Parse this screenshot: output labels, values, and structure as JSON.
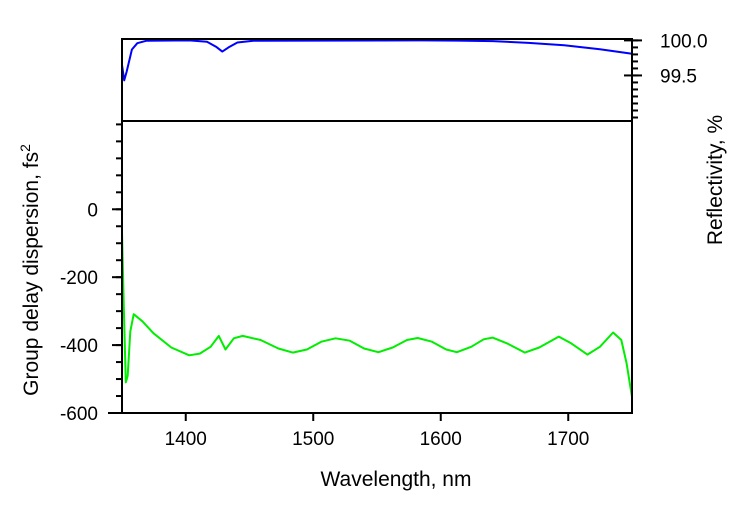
{
  "chart_data": [
    {
      "type": "line",
      "panel": "top",
      "ylabel": "Reflectivity, %",
      "yaxis_side": "right",
      "xlim": [
        1350,
        1750
      ],
      "ylim": [
        98.85,
        100.02
      ],
      "yticks": [
        100.0,
        99.5
      ],
      "ytick_labels": [
        "100.0",
        "99.5"
      ],
      "series": [
        {
          "name": "Reflectivity",
          "color": "#0000ff",
          "x": [
            1350,
            1351.7,
            1353.6,
            1357.8,
            1362,
            1369,
            1402.7,
            1416.7,
            1423.7,
            1428.7,
            1433.5,
            1440.5,
            1453,
            1584.7,
            1612.7,
            1640.7,
            1668.8,
            1696.8,
            1724.8,
            1750
          ],
          "y": [
            99.65,
            99.43,
            99.55,
            99.87,
            99.96,
            99.995,
            100.0,
            99.98,
            99.91,
            99.84,
            99.9,
            99.97,
            99.995,
            100.0,
            99.997,
            99.99,
            99.965,
            99.93,
            99.875,
            99.81
          ]
        }
      ]
    },
    {
      "type": "line",
      "panel": "bottom",
      "xlabel": "Wavelength, nm",
      "ylabel": "Group delay dispersion, fs",
      "ylabel_superscript": "2",
      "xlim": [
        1350,
        1750
      ],
      "ylim": [
        -600,
        260
      ],
      "xticks": [
        1400,
        1500,
        1600,
        1700
      ],
      "xtick_labels": [
        "1400",
        "1500",
        "1600",
        "1700"
      ],
      "yticks": [
        0,
        -200,
        -400,
        -600
      ],
      "ytick_labels": [
        "0",
        "-200",
        "-400",
        "-600"
      ],
      "series": [
        {
          "name": "GDD",
          "color": "#00ee00",
          "x": [
            1350,
            1351.5,
            1353,
            1354.5,
            1356.5,
            1359.2,
            1366,
            1374.6,
            1388.7,
            1402.7,
            1411,
            1419.5,
            1425.9,
            1431.2,
            1437.7,
            1444.7,
            1458.7,
            1472.7,
            1483.9,
            1495,
            1506.3,
            1517.5,
            1528.7,
            1539.9,
            1551.1,
            1562.3,
            1573.5,
            1581.9,
            1593.1,
            1604.3,
            1612.7,
            1623.9,
            1633.7,
            1640.7,
            1652,
            1666,
            1677.2,
            1692.6,
            1702.4,
            1715,
            1724.8,
            1735.2,
            1741.6,
            1745.8,
            1750
          ],
          "y": [
            -67,
            -300,
            -510,
            -490,
            -360,
            -309,
            -330,
            -365,
            -407,
            -430,
            -425,
            -405,
            -373,
            -413,
            -380,
            -373,
            -385,
            -410,
            -422,
            -413,
            -390,
            -380,
            -387,
            -410,
            -421,
            -407,
            -385,
            -379,
            -390,
            -413,
            -421,
            -405,
            -383,
            -378,
            -395,
            -422,
            -407,
            -375,
            -395,
            -428,
            -405,
            -363,
            -385,
            -454,
            -553
          ]
        }
      ]
    }
  ]
}
